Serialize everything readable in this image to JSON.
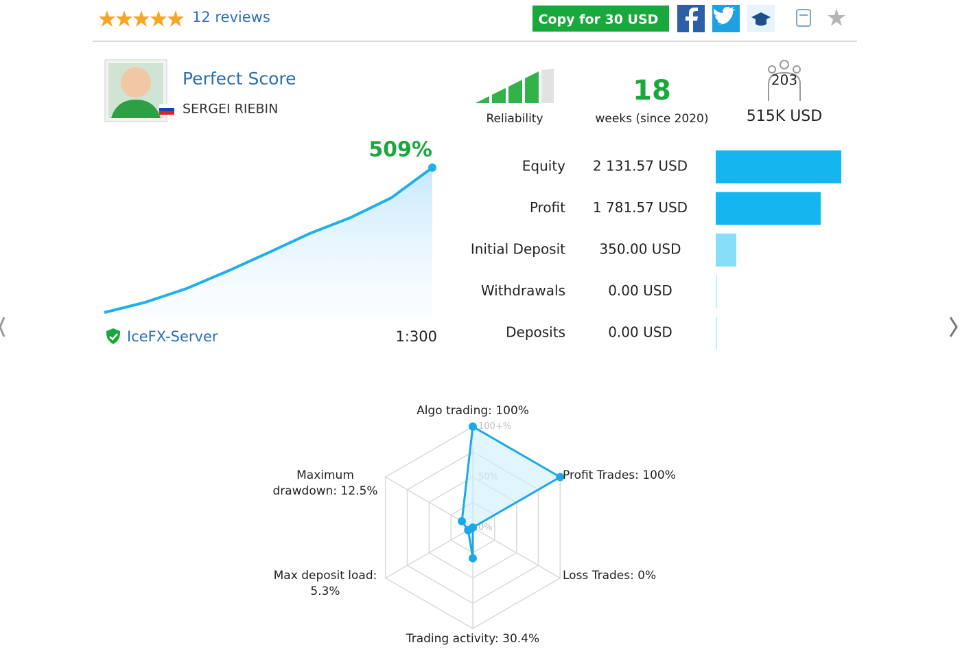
{
  "header": {
    "reviews": "12 reviews",
    "copy_button": "Copy for 30 USD"
  },
  "profile": {
    "name": "Perfect Score",
    "author": "SERGEI RIEBIN"
  },
  "summary": {
    "reliability": "Reliability",
    "weeks": "18",
    "weeks_label": "weeks (since 2020)",
    "subscribers": "203",
    "funds": "515K USD"
  },
  "growth": {
    "end_label": "509%",
    "values": [
      0,
      36,
      84,
      145,
      210,
      277,
      333,
      403,
      509
    ],
    "color": "#1fb0ea",
    "server": "IceFX-Server",
    "leverage": "1:300"
  },
  "stats": {
    "rows": [
      {
        "label": "Equity",
        "value": 2131.57,
        "value_label": "2 131.57 USD",
        "color": "#13b6ef"
      },
      {
        "label": "Profit",
        "value": 1781.57,
        "value_label": "1 781.57 USD",
        "color": "#13b6ef"
      },
      {
        "label": "Initial Deposit",
        "value": 350.0,
        "value_label": "350.00 USD",
        "color": "#86def8"
      },
      {
        "label": "Withdrawals",
        "value": 0,
        "value_label": "0.00 USD",
        "color": "#86def8"
      },
      {
        "label": "Deposits",
        "value": 0,
        "value_label": "0.00 USD",
        "color": "#86def8"
      }
    ]
  },
  "radar": {
    "color": "#1ca8e8",
    "ticks": [
      {
        "value": 100,
        "label": "100+%"
      },
      {
        "value": 50,
        "label": "50%"
      },
      {
        "value": 0,
        "label": "0%"
      }
    ],
    "axes": [
      {
        "label_lines": [
          "Algo trading: 100%"
        ],
        "value": 100
      },
      {
        "label_lines": [
          "Profit Trades: 100%"
        ],
        "value": 100
      },
      {
        "label_lines": [
          "Loss Trades: 0%"
        ],
        "value": 0
      },
      {
        "label_lines": [
          "Trading activity: 30.4%"
        ],
        "value": 30.4
      },
      {
        "label_lines": [
          "Max deposit load:",
          "5.3%"
        ],
        "value": 5.3
      },
      {
        "label_lines": [
          "Maximum",
          "drawdown: 12.5%"
        ],
        "value": 12.5
      }
    ]
  }
}
